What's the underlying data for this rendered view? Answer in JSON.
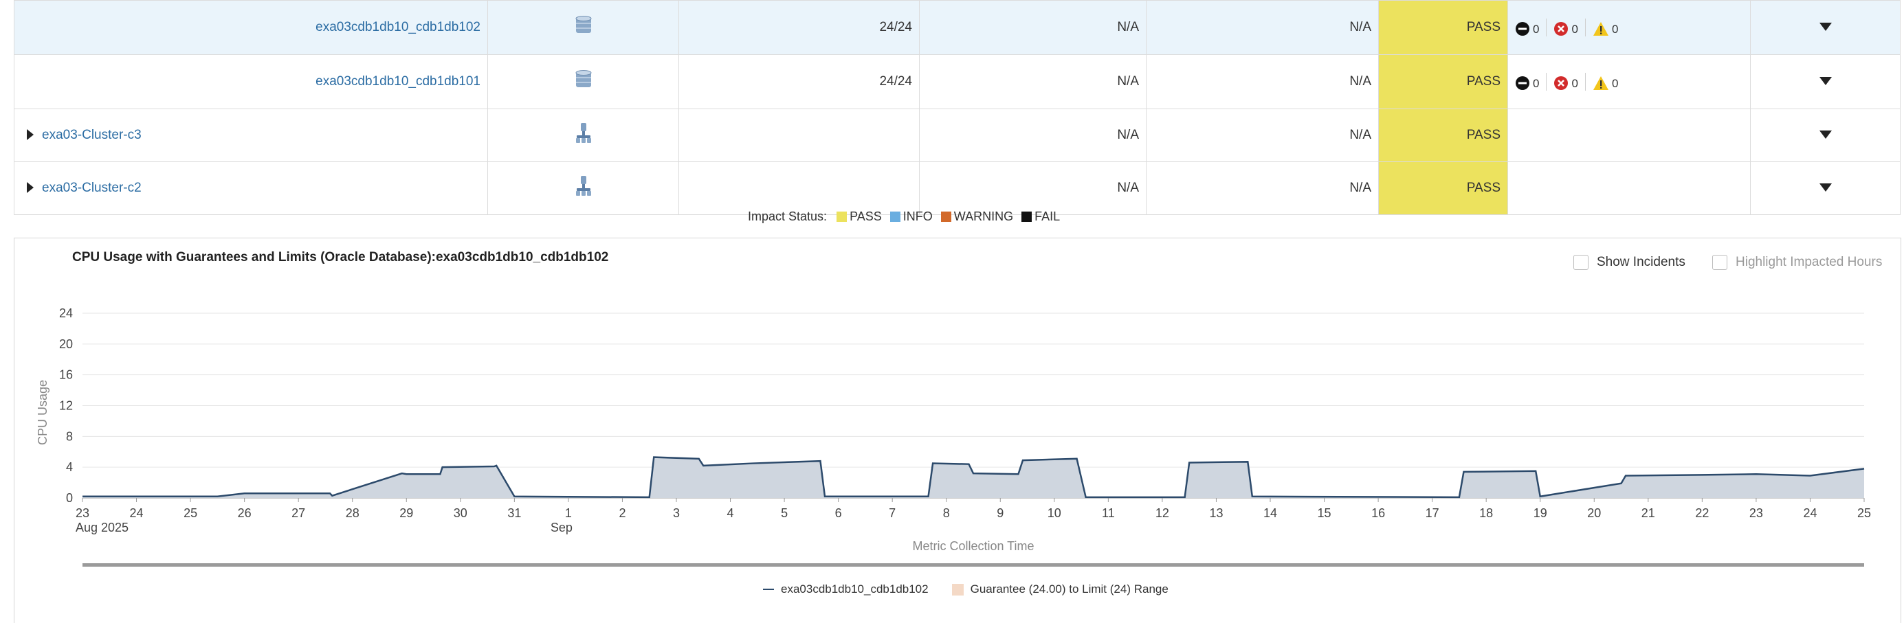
{
  "table": {
    "rows": [
      {
        "name": "exa03cdb1db10_cdb1db102",
        "type_icon": "database-icon",
        "cpu": "24/24",
        "col4": "N/A",
        "col5": "N/A",
        "status": "PASS",
        "alerts": {
          "critical": "0",
          "error": "0",
          "warning": "0"
        },
        "selected": true,
        "expandable": false
      },
      {
        "name": "exa03cdb1db10_cdb1db101",
        "type_icon": "database-icon",
        "cpu": "24/24",
        "col4": "N/A",
        "col5": "N/A",
        "status": "PASS",
        "alerts": {
          "critical": "0",
          "error": "0",
          "warning": "0"
        },
        "selected": false,
        "expandable": false
      },
      {
        "name": "exa03-Cluster-c3",
        "type_icon": "cluster-icon",
        "cpu": "",
        "col4": "N/A",
        "col5": "N/A",
        "status": "PASS",
        "alerts": null,
        "selected": false,
        "expandable": true
      },
      {
        "name": "exa03-Cluster-c2",
        "type_icon": "cluster-icon",
        "cpu": "",
        "col4": "N/A",
        "col5": "N/A",
        "status": "PASS",
        "alerts": null,
        "selected": false,
        "expandable": true
      }
    ]
  },
  "impact_legend": {
    "label": "Impact Status:",
    "items": [
      {
        "label": "PASS",
        "color": "#ece25e"
      },
      {
        "label": "INFO",
        "color": "#6aaee0"
      },
      {
        "label": "WARNING",
        "color": "#d2692a"
      },
      {
        "label": "FAIL",
        "color": "#111111"
      }
    ]
  },
  "chart_panel": {
    "show_incidents_label": "Show Incidents",
    "highlight_label": "Highlight Impacted Hours"
  },
  "chart_data": {
    "type": "area",
    "title": "CPU Usage with Guarantees and Limits (Oracle Database):exa03cdb1db10_cdb1db102",
    "xlabel": "Metric Collection Time",
    "ylabel": "CPU Usage",
    "ylim": [
      0,
      24
    ],
    "yticks": [
      0,
      4,
      8,
      12,
      16,
      20,
      24
    ],
    "xlim": [
      "2025-08-23",
      "2025-09-25"
    ],
    "x_tick_labels": [
      "23",
      "24",
      "25",
      "26",
      "27",
      "28",
      "29",
      "30",
      "31",
      "1",
      "2",
      "3",
      "4",
      "5",
      "6",
      "7",
      "8",
      "9",
      "10",
      "11",
      "12",
      "13",
      "14",
      "15",
      "16",
      "17",
      "18",
      "19",
      "20",
      "21",
      "22",
      "23",
      "24",
      "25"
    ],
    "x_subticks": [
      {
        "at": "23",
        "text": "Aug 2025"
      },
      {
        "at": "1",
        "text": "Sep"
      }
    ],
    "grid": true,
    "series": [
      {
        "name": "exa03cdb1db10_cdb1db102",
        "color": "#2c4a6b",
        "fill": "#cfd6df",
        "x": [
          "2025-08-23",
          "2025-08-25 12:00",
          "2025-08-26",
          "2025-08-27 14:00",
          "2025-08-27 15:00",
          "2025-08-28 22:00",
          "2025-08-29 00:00",
          "2025-08-29 15:00",
          "2025-08-29 16:00",
          "2025-08-30 15:00",
          "2025-08-30 16:00",
          "2025-08-31 00:00",
          "2025-09-02 12:00",
          "2025-09-02 14:00",
          "2025-09-03 10:00",
          "2025-09-03 12:00",
          "2025-09-04 10:00",
          "2025-09-05 16:00",
          "2025-09-05 18:00",
          "2025-09-07 16:00",
          "2025-09-07 18:00",
          "2025-09-08 10:00",
          "2025-09-08 12:00",
          "2025-09-09 08:00",
          "2025-09-09 10:00",
          "2025-09-10 10:00",
          "2025-09-10 14:00",
          "2025-09-12 10:00",
          "2025-09-12 12:00",
          "2025-09-13 14:00",
          "2025-09-13 16:00",
          "2025-09-17 12:00",
          "2025-09-17 14:00",
          "2025-09-18 22:00",
          "2025-09-19 00:00",
          "2025-09-20 12:00",
          "2025-09-20 14:00",
          "2025-09-22 00:00",
          "2025-09-23 00:00",
          "2025-09-24 00:00",
          "2025-09-25 00:00"
        ],
        "values": [
          0.2,
          0.2,
          0.6,
          0.6,
          0.3,
          3.2,
          3.1,
          3.1,
          4.0,
          4.1,
          4.2,
          0.2,
          0.1,
          5.3,
          5.1,
          4.2,
          4.5,
          4.8,
          0.2,
          0.2,
          4.5,
          4.4,
          3.2,
          3.1,
          4.9,
          5.1,
          0.1,
          0.1,
          4.6,
          4.7,
          0.2,
          0.1,
          3.4,
          3.5,
          0.2,
          1.9,
          2.9,
          3.0,
          3.1,
          2.9,
          3.8
        ]
      }
    ],
    "legend": [
      {
        "label": "exa03cdb1db10_cdb1db102",
        "kind": "line",
        "color": "#2c4a6b"
      },
      {
        "label": "Guarantee (24.00) to Limit (24) Range",
        "kind": "area",
        "color": "#f4d9c6"
      }
    ]
  }
}
